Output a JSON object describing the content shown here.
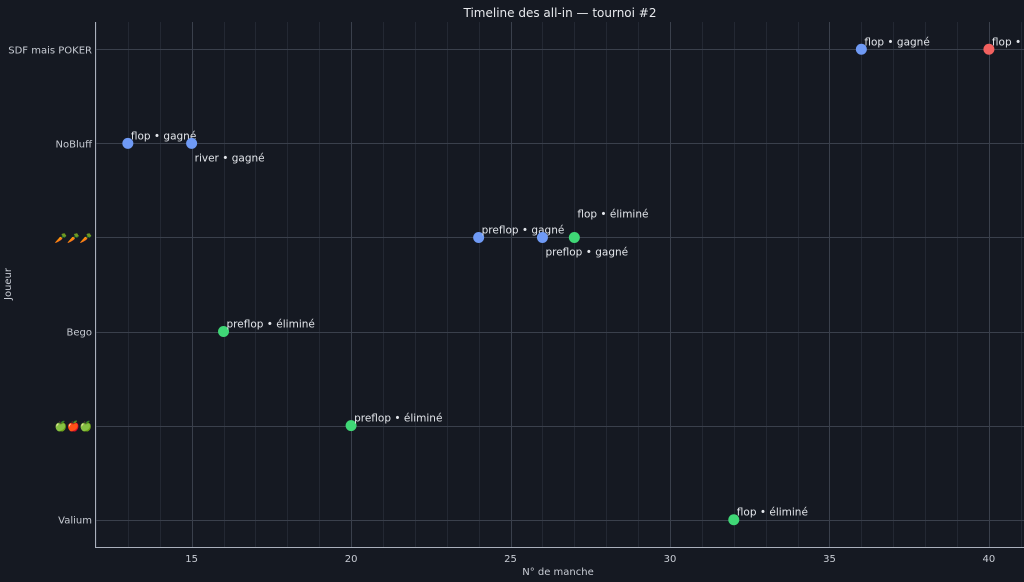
{
  "chart_data": {
    "type": "scatter",
    "title": "Timeline des all-in — tournoi #2",
    "xlabel": "N° de manche",
    "ylabel": "Joueur",
    "xlim": [
      11.97,
      41.1
    ],
    "xticks": [
      15,
      20,
      25,
      30,
      35,
      40
    ],
    "categories": [
      "Valium",
      "🍏🍎🍏",
      "Bego",
      "🥕🥕🥕",
      "NoBluff",
      "SDF mais POKER"
    ],
    "grid": true,
    "colors": {
      "gagné": "#6f9af5",
      "éliminé": "#3fd776",
      "perdu": "#f2615f"
    },
    "points": [
      {
        "x": 36,
        "player": "SDF mais POKER",
        "label": "flop • gagné",
        "outcome": "gagné"
      },
      {
        "x": 40,
        "player": "SDF mais POKER",
        "label": "flop • perdu",
        "outcome": "perdu"
      },
      {
        "x": 13,
        "player": "NoBluff",
        "label": "flop • gagné",
        "outcome": "gagné"
      },
      {
        "x": 15,
        "player": "NoBluff",
        "label": "river • gagné",
        "outcome": "gagné"
      },
      {
        "x": 24,
        "player": "🥕🥕🥕",
        "label": "preflop • gagné",
        "outcome": "gagné"
      },
      {
        "x": 26,
        "player": "🥕🥕🥕",
        "label": "preflop • gagné",
        "outcome": "gagné"
      },
      {
        "x": 27,
        "player": "🥕🥕🥕",
        "label": "flop • éliminé",
        "outcome": "éliminé"
      },
      {
        "x": 16,
        "player": "Bego",
        "label": "preflop • éliminé",
        "outcome": "éliminé"
      },
      {
        "x": 20,
        "player": "🍏🍎🍏",
        "label": "preflop • éliminé",
        "outcome": "éliminé"
      },
      {
        "x": 32,
        "player": "Valium",
        "label": "flop • éliminé",
        "outcome": "éliminé"
      }
    ]
  }
}
